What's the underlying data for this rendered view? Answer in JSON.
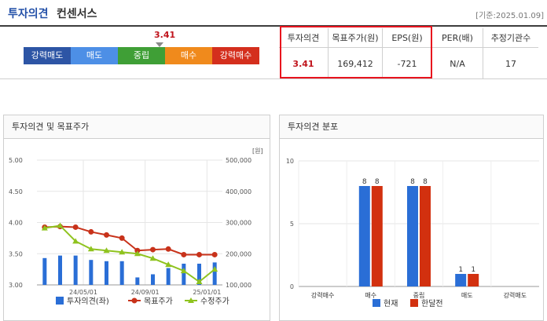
{
  "header": {
    "title_blue": "투자의견",
    "title_dark": "컨센서스",
    "date": "[기준:2025.01.09]"
  },
  "gauge": {
    "score": "3.41",
    "segments": [
      {
        "label": "강력매도",
        "color": "#2d55a5"
      },
      {
        "label": "매도",
        "color": "#4d8fe6"
      },
      {
        "label": "중립",
        "color": "#3f9f36"
      },
      {
        "label": "매수",
        "color": "#f08a1c"
      },
      {
        "label": "강력매수",
        "color": "#d42f1d"
      }
    ]
  },
  "consensus_table": {
    "headers": [
      "투자의견",
      "목표주가(원)",
      "EPS(원)",
      "PER(배)",
      "추정기관수"
    ],
    "values": [
      "3.41",
      "169,412",
      "-721",
      "N/A",
      "17"
    ]
  },
  "left_panel": {
    "title": "투자의견 및 목표주가"
  },
  "right_panel": {
    "title": "투자의견 분포"
  },
  "chart_data": [
    {
      "type": "bar+line",
      "title": "투자의견 및 목표주가",
      "y_left": {
        "ylim": [
          3.0,
          5.0
        ],
        "ticks": [
          "5.00",
          "4.50",
          "4.00",
          "3.50",
          "3.00"
        ]
      },
      "y_right": {
        "unit": "[원]",
        "ylim": [
          100000,
          500000
        ],
        "ticks": [
          "500,000",
          "400,000",
          "300,000",
          "200,000",
          "100,000"
        ]
      },
      "x_ticks": [
        "24/05/01",
        "24/09/01",
        "25/01/01"
      ],
      "series": [
        {
          "name": "투자의견(좌)",
          "type": "bar",
          "axis": "left",
          "color": "#2a6ed6",
          "values": [
            3.43,
            3.47,
            3.47,
            3.4,
            3.38,
            3.38,
            3.12,
            3.17,
            3.27,
            3.34,
            3.34,
            3.36
          ]
        },
        {
          "name": "목표주가",
          "type": "line",
          "axis": "right",
          "color": "#c8321a",
          "values": [
            285000,
            287000,
            285000,
            270000,
            260000,
            250000,
            210000,
            213000,
            215000,
            197000,
            197000,
            197000
          ]
        },
        {
          "name": "수정주가",
          "type": "line",
          "axis": "right",
          "color": "#8fc31f",
          "values": [
            282000,
            290000,
            240000,
            215000,
            210000,
            205000,
            200000,
            185000,
            165000,
            145000,
            110000,
            150000
          ]
        }
      ]
    },
    {
      "type": "bar",
      "title": "투자의견 분포",
      "categories": [
        "강력매수",
        "매수",
        "중립",
        "매도",
        "강력매도"
      ],
      "ylim": [
        0,
        10
      ],
      "y_ticks": [
        "10",
        "5",
        "0"
      ],
      "series": [
        {
          "name": "현재",
          "color": "#2a6ed6",
          "values": [
            0,
            8,
            8,
            1,
            0
          ]
        },
        {
          "name": "한달전",
          "color": "#d2300f",
          "values": [
            0,
            8,
            8,
            1,
            0
          ]
        }
      ]
    }
  ]
}
